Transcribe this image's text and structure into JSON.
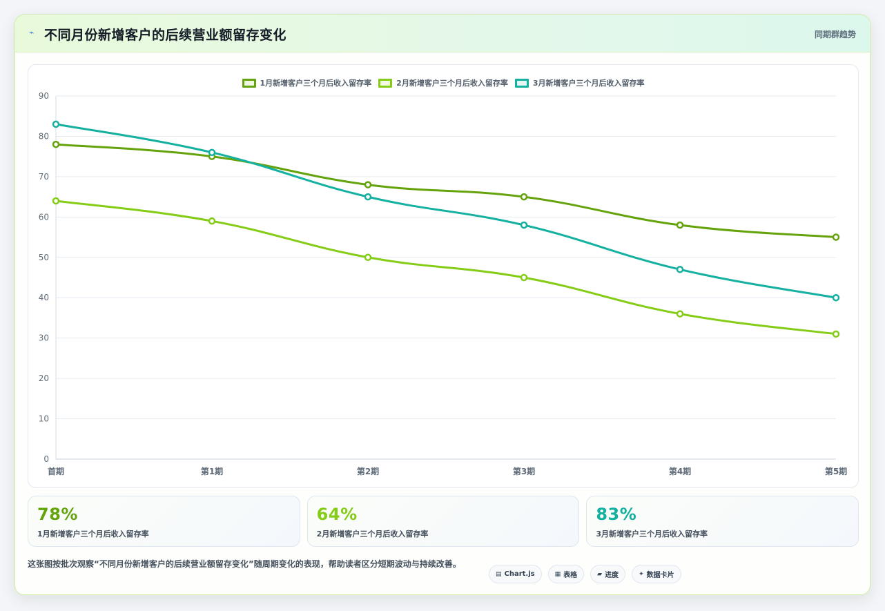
{
  "header": {
    "icon": "lightning-icon",
    "title": "不同月份新增客户的后续营业额留存变化",
    "subtitle": "同期群趋势"
  },
  "chart_data": {
    "type": "line",
    "categories": [
      "首期",
      "第1期",
      "第2期",
      "第3期",
      "第4期",
      "第5期"
    ],
    "ylim": [
      0,
      90
    ],
    "yticks": [
      0,
      10,
      20,
      30,
      40,
      50,
      60,
      70,
      80,
      90
    ],
    "grid": true,
    "legend_position": "top-center",
    "series": [
      {
        "name": "1月新增客户三个月后收入留存率",
        "color": "#65a30d",
        "values": [
          78,
          75,
          68,
          65,
          58,
          55
        ]
      },
      {
        "name": "2月新增客户三个月后收入留存率",
        "color": "#84cc16",
        "values": [
          64,
          59,
          50,
          45,
          36,
          31
        ]
      },
      {
        "name": "3月新增客户三个月后收入留存率",
        "color": "#14b0a0",
        "values": [
          83,
          76,
          65,
          58,
          47,
          40
        ]
      }
    ]
  },
  "stats": [
    {
      "value": "78%",
      "label": "1月新增客户三个月后收入留存率",
      "color": "#65a30d"
    },
    {
      "value": "64%",
      "label": "2月新增客户三个月后收入留存率",
      "color": "#84cc16"
    },
    {
      "value": "83%",
      "label": "3月新增客户三个月后收入留存率",
      "color": "#14b0a0"
    }
  ],
  "footer": {
    "description": "这张图按批次观察“不同月份新增客户的后续营业额留存变化”随周期变化的表现，帮助读者区分短期波动与持续改善。",
    "tags": [
      {
        "icon": "chart-icon",
        "glyph": "▤",
        "label": "Chart.js"
      },
      {
        "icon": "table-icon",
        "glyph": "▦",
        "label": "表格"
      },
      {
        "icon": "progress-icon",
        "glyph": "▰",
        "label": "进度"
      },
      {
        "icon": "sparkle-icon",
        "glyph": "✦",
        "label": "数据卡片"
      }
    ]
  }
}
